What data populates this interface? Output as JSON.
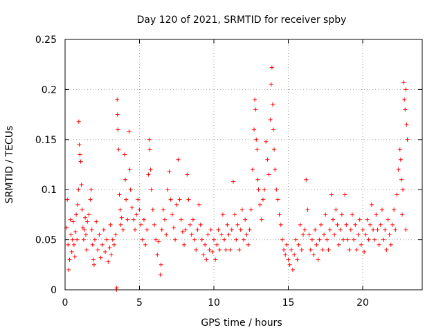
{
  "chart_data": {
    "type": "scatter",
    "title": "Day 120 of 2021, SRMTID for receiver spby",
    "xlabel": "GPS time / hours",
    "ylabel": "SRMTID / TECUs",
    "xlim": [
      0,
      24.0
    ],
    "ylim": [
      0,
      0.25
    ],
    "x_ticks": [
      0,
      5,
      10,
      15,
      20
    ],
    "x_tick_labels": [
      "0",
      "5",
      "10",
      "15",
      "20"
    ],
    "y_ticks": [
      0,
      0.05,
      0.1,
      0.15,
      0.2,
      0.25
    ],
    "y_tick_labels": [
      "0",
      "0.05",
      "0.1",
      "0.15",
      "0.2",
      "0.25"
    ],
    "grid": true,
    "marker": "+",
    "color": "#ff0000",
    "series": [
      {
        "name": "SRMTID",
        "points": [
          [
            0.1,
            0.062
          ],
          [
            0.15,
            0.09
          ],
          [
            0.2,
            0.045
          ],
          [
            0.25,
            0.02
          ],
          [
            0.3,
            0.03
          ],
          [
            0.35,
            0.07
          ],
          [
            0.4,
            0.055
          ],
          [
            0.45,
            0.038
          ],
          [
            0.5,
            0.05
          ],
          [
            0.55,
            0.068
          ],
          [
            0.6,
            0.045
          ],
          [
            0.65,
            0.033
          ],
          [
            0.7,
            0.058
          ],
          [
            0.75,
            0.075
          ],
          [
            0.8,
            0.05
          ],
          [
            0.85,
            0.085
          ],
          [
            0.9,
            0.1
          ],
          [
            0.92,
            0.168
          ],
          [
            0.95,
            0.145
          ],
          [
            1.0,
            0.135
          ],
          [
            1.05,
            0.128
          ],
          [
            1.1,
            0.105
          ],
          [
            1.15,
            0.08
          ],
          [
            1.2,
            0.062
          ],
          [
            1.25,
            0.05
          ],
          [
            1.3,
            0.06
          ],
          [
            1.35,
            0.072
          ],
          [
            1.4,
            0.055
          ],
          [
            1.45,
            0.04
          ],
          [
            1.5,
            0.068
          ],
          [
            1.6,
            0.075
          ],
          [
            1.7,
            0.09
          ],
          [
            1.75,
            0.1
          ],
          [
            1.8,
            0.06
          ],
          [
            1.85,
            0.045
          ],
          [
            1.9,
            0.03
          ],
          [
            1.95,
            0.025
          ],
          [
            2.0,
            0.05
          ],
          [
            2.1,
            0.068
          ],
          [
            2.2,
            0.04
          ],
          [
            2.3,
            0.055
          ],
          [
            2.4,
            0.032
          ],
          [
            2.5,
            0.045
          ],
          [
            2.6,
            0.06
          ],
          [
            2.7,
            0.038
          ],
          [
            2.8,
            0.05
          ],
          [
            2.9,
            0.028
          ],
          [
            3.0,
            0.042
          ],
          [
            3.05,
            0.065
          ],
          [
            3.1,
            0.035
          ],
          [
            3.2,
            0.05
          ],
          [
            3.3,
            0.045
          ],
          [
            3.4,
            0.055
          ],
          [
            3.45,
            0.0
          ],
          [
            3.47,
            0.002
          ],
          [
            3.5,
            0.19
          ],
          [
            3.52,
            0.175
          ],
          [
            3.55,
            0.16
          ],
          [
            3.6,
            0.14
          ],
          [
            3.65,
            0.095
          ],
          [
            3.7,
            0.08
          ],
          [
            3.75,
            0.065
          ],
          [
            3.8,
            0.072
          ],
          [
            3.9,
            0.06
          ],
          [
            4.0,
            0.135
          ],
          [
            4.05,
            0.11
          ],
          [
            4.1,
            0.09
          ],
          [
            4.2,
            0.07
          ],
          [
            4.3,
            0.158
          ],
          [
            4.35,
            0.12
          ],
          [
            4.4,
            0.1
          ],
          [
            4.5,
            0.082
          ],
          [
            4.6,
            0.07
          ],
          [
            4.7,
            0.06
          ],
          [
            4.8,
            0.075
          ],
          [
            4.9,
            0.09
          ],
          [
            5.0,
            0.08
          ],
          [
            5.1,
            0.065
          ],
          [
            5.2,
            0.05
          ],
          [
            5.3,
            0.07
          ],
          [
            5.4,
            0.045
          ],
          [
            5.5,
            0.06
          ],
          [
            5.6,
            0.115
          ],
          [
            5.65,
            0.15
          ],
          [
            5.7,
            0.14
          ],
          [
            5.75,
            0.12
          ],
          [
            5.8,
            0.1
          ],
          [
            5.9,
            0.08
          ],
          [
            6.0,
            0.065
          ],
          [
            6.1,
            0.05
          ],
          [
            6.2,
            0.035
          ],
          [
            6.3,
            0.048
          ],
          [
            6.4,
            0.015
          ],
          [
            6.45,
            0.025
          ],
          [
            6.5,
            0.06
          ],
          [
            6.6,
            0.08
          ],
          [
            6.7,
            0.07
          ],
          [
            6.8,
            0.055
          ],
          [
            6.9,
            0.1
          ],
          [
            7.0,
            0.118
          ],
          [
            7.1,
            0.09
          ],
          [
            7.2,
            0.075
          ],
          [
            7.3,
            0.062
          ],
          [
            7.4,
            0.05
          ],
          [
            7.5,
            0.085
          ],
          [
            7.6,
            0.13
          ],
          [
            7.7,
            0.09
          ],
          [
            7.8,
            0.07
          ],
          [
            7.9,
            0.058
          ],
          [
            8.0,
            0.045
          ],
          [
            8.1,
            0.06
          ],
          [
            8.2,
            0.115
          ],
          [
            8.3,
            0.09
          ],
          [
            8.4,
            0.065
          ],
          [
            8.5,
            0.055
          ],
          [
            8.6,
            0.07
          ],
          [
            8.7,
            0.05
          ],
          [
            8.8,
            0.04
          ],
          [
            8.9,
            0.06
          ],
          [
            9.0,
            0.085
          ],
          [
            9.1,
            0.065
          ],
          [
            9.2,
            0.05
          ],
          [
            9.3,
            0.035
          ],
          [
            9.4,
            0.045
          ],
          [
            9.5,
            0.03
          ],
          [
            9.6,
            0.055
          ],
          [
            9.7,
            0.04
          ],
          [
            9.8,
            0.06
          ],
          [
            9.9,
            0.038
          ],
          [
            10.0,
            0.05
          ],
          [
            10.1,
            0.03
          ],
          [
            10.2,
            0.045
          ],
          [
            10.3,
            0.06
          ],
          [
            10.4,
            0.04
          ],
          [
            10.5,
            0.055
          ],
          [
            10.6,
            0.075
          ],
          [
            10.7,
            0.05
          ],
          [
            10.8,
            0.04
          ],
          [
            10.9,
            0.065
          ],
          [
            11.0,
            0.055
          ],
          [
            11.1,
            0.04
          ],
          [
            11.2,
            0.06
          ],
          [
            11.3,
            0.108
          ],
          [
            11.4,
            0.075
          ],
          [
            11.5,
            0.05
          ],
          [
            11.6,
            0.065
          ],
          [
            11.7,
            0.04
          ],
          [
            11.8,
            0.06
          ],
          [
            11.9,
            0.08
          ],
          [
            12.0,
            0.05
          ],
          [
            12.1,
            0.07
          ],
          [
            12.2,
            0.055
          ],
          [
            12.3,
            0.045
          ],
          [
            12.4,
            0.06
          ],
          [
            12.5,
            0.08
          ],
          [
            12.6,
            0.12
          ],
          [
            12.7,
            0.16
          ],
          [
            12.75,
            0.19
          ],
          [
            12.8,
            0.18
          ],
          [
            12.85,
            0.15
          ],
          [
            12.9,
            0.14
          ],
          [
            12.95,
            0.11
          ],
          [
            13.0,
            0.1
          ],
          [
            13.1,
            0.085
          ],
          [
            13.2,
            0.07
          ],
          [
            13.3,
            0.09
          ],
          [
            13.4,
            0.1
          ],
          [
            13.5,
            0.148
          ],
          [
            13.6,
            0.13
          ],
          [
            13.7,
            0.115
          ],
          [
            13.8,
            0.17
          ],
          [
            13.85,
            0.205
          ],
          [
            13.9,
            0.222
          ],
          [
            13.95,
            0.185
          ],
          [
            14.0,
            0.16
          ],
          [
            14.05,
            0.14
          ],
          [
            14.1,
            0.12
          ],
          [
            14.2,
            0.1
          ],
          [
            14.3,
            0.09
          ],
          [
            14.4,
            0.075
          ],
          [
            14.5,
            0.065
          ],
          [
            14.6,
            0.05
          ],
          [
            14.7,
            0.04
          ],
          [
            14.8,
            0.035
          ],
          [
            14.9,
            0.045
          ],
          [
            15.0,
            0.03
          ],
          [
            15.1,
            0.025
          ],
          [
            15.2,
            0.04
          ],
          [
            15.3,
            0.02
          ],
          [
            15.4,
            0.035
          ],
          [
            15.5,
            0.05
          ],
          [
            15.6,
            0.03
          ],
          [
            15.7,
            0.045
          ],
          [
            15.8,
            0.065
          ],
          [
            15.9,
            0.04
          ],
          [
            16.0,
            0.055
          ],
          [
            16.1,
            0.06
          ],
          [
            16.2,
            0.11
          ],
          [
            16.3,
            0.08
          ],
          [
            16.4,
            0.055
          ],
          [
            16.5,
            0.04
          ],
          [
            16.6,
            0.05
          ],
          [
            16.7,
            0.035
          ],
          [
            16.8,
            0.06
          ],
          [
            16.9,
            0.045
          ],
          [
            17.0,
            0.03
          ],
          [
            17.1,
            0.05
          ],
          [
            17.2,
            0.065
          ],
          [
            17.3,
            0.04
          ],
          [
            17.4,
            0.055
          ],
          [
            17.5,
            0.075
          ],
          [
            17.6,
            0.05
          ],
          [
            17.7,
            0.04
          ],
          [
            17.8,
            0.06
          ],
          [
            17.9,
            0.095
          ],
          [
            18.0,
            0.07
          ],
          [
            18.1,
            0.055
          ],
          [
            18.2,
            0.08
          ],
          [
            18.3,
            0.065
          ],
          [
            18.4,
            0.045
          ],
          [
            18.5,
            0.06
          ],
          [
            18.6,
            0.075
          ],
          [
            18.7,
            0.05
          ],
          [
            18.8,
            0.095
          ],
          [
            18.9,
            0.065
          ],
          [
            19.0,
            0.05
          ],
          [
            19.1,
            0.04
          ],
          [
            19.2,
            0.06
          ],
          [
            19.3,
            0.075
          ],
          [
            19.4,
            0.05
          ],
          [
            19.5,
            0.065
          ],
          [
            19.6,
            0.04
          ],
          [
            19.7,
            0.055
          ],
          [
            19.8,
            0.07
          ],
          [
            19.9,
            0.045
          ],
          [
            20.0,
            0.06
          ],
          [
            20.1,
            0.038
          ],
          [
            20.2,
            0.055
          ],
          [
            20.3,
            0.07
          ],
          [
            20.4,
            0.05
          ],
          [
            20.5,
            0.065
          ],
          [
            20.6,
            0.085
          ],
          [
            20.7,
            0.06
          ],
          [
            20.8,
            0.05
          ],
          [
            20.9,
            0.075
          ],
          [
            21.0,
            0.06
          ],
          [
            21.1,
            0.045
          ],
          [
            21.2,
            0.065
          ],
          [
            21.3,
            0.08
          ],
          [
            21.4,
            0.05
          ],
          [
            21.5,
            0.06
          ],
          [
            21.6,
            0.04
          ],
          [
            21.7,
            0.07
          ],
          [
            21.8,
            0.055
          ],
          [
            21.9,
            0.045
          ],
          [
            22.0,
            0.065
          ],
          [
            22.1,
            0.08
          ],
          [
            22.2,
            0.06
          ],
          [
            22.3,
            0.095
          ],
          [
            22.4,
            0.12
          ],
          [
            22.5,
            0.14
          ],
          [
            22.55,
            0.13
          ],
          [
            22.6,
            0.11
          ],
          [
            22.65,
            0.075
          ],
          [
            22.7,
            0.1
          ],
          [
            22.75,
            0.207
          ],
          [
            22.8,
            0.19
          ],
          [
            22.85,
            0.18
          ],
          [
            22.9,
            0.2
          ],
          [
            22.95,
            0.165
          ],
          [
            23.0,
            0.15
          ],
          [
            22.9,
            0.06
          ]
        ]
      }
    ]
  }
}
